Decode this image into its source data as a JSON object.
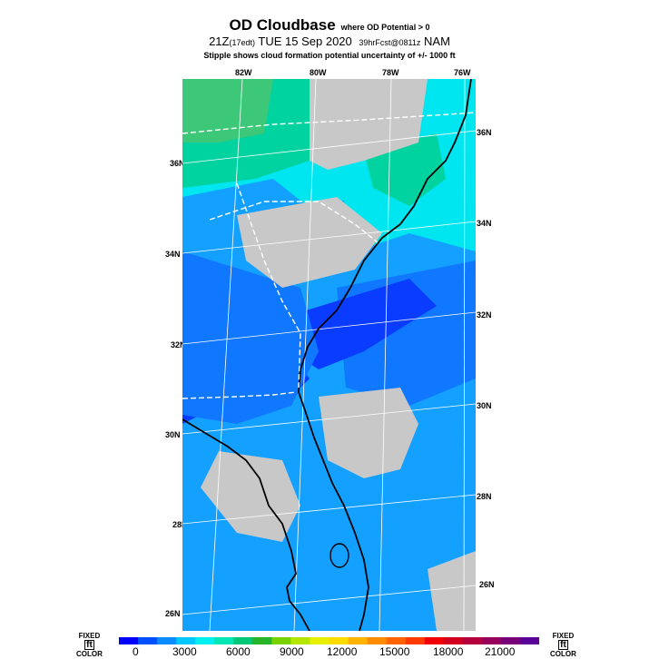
{
  "header": {
    "title": "OD Cloudbase",
    "qualifier": "where OD Potential > 0",
    "run_time": "21Z",
    "run_local": "(17edt)",
    "valid_date": "TUE 15 Sep 2020",
    "forecast": "39hrFcst@0811z",
    "model": "NAM",
    "note": "Stipple shows cloud formation potential uncertainty of +/- 1000 ft"
  },
  "map": {
    "lon_labels": [
      "82W",
      "80W",
      "78W",
      "76W"
    ],
    "lat_labels_left": [
      "36N",
      "34N",
      "32N",
      "30N",
      "28N",
      "26N"
    ],
    "lat_labels_right": [
      "36N",
      "34N",
      "32N",
      "30N",
      "28N",
      "26N"
    ],
    "colors": {
      "no_data": "#c8c8c8",
      "blue_dark": "#0a3cff",
      "blue_mid": "#0f78ff",
      "blue_light": "#14a0ff",
      "cyan": "#00e6f0",
      "teal": "#00d2a0",
      "green": "#3cc878"
    }
  },
  "colorbar": {
    "left_label_top": "FIXED",
    "left_label_unit": "ft",
    "left_label_bottom": "COLOR",
    "right_label_top": "FIXED",
    "right_label_unit": "ft",
    "right_label_bottom": "COLOR",
    "ticks": [
      "0",
      "3000",
      "6000",
      "9000",
      "12000",
      "15000",
      "18000",
      "21000"
    ],
    "colors": [
      "#0000ff",
      "#0050ff",
      "#0a8cff",
      "#00c8ff",
      "#00f0f0",
      "#00e6b4",
      "#00c878",
      "#28b428",
      "#78d200",
      "#b4e600",
      "#e6f000",
      "#ffdc00",
      "#ffb400",
      "#ff8c00",
      "#ff6400",
      "#ff3c00",
      "#f00000",
      "#d2001e",
      "#b4003c",
      "#96005a",
      "#780078",
      "#5a0096"
    ]
  }
}
